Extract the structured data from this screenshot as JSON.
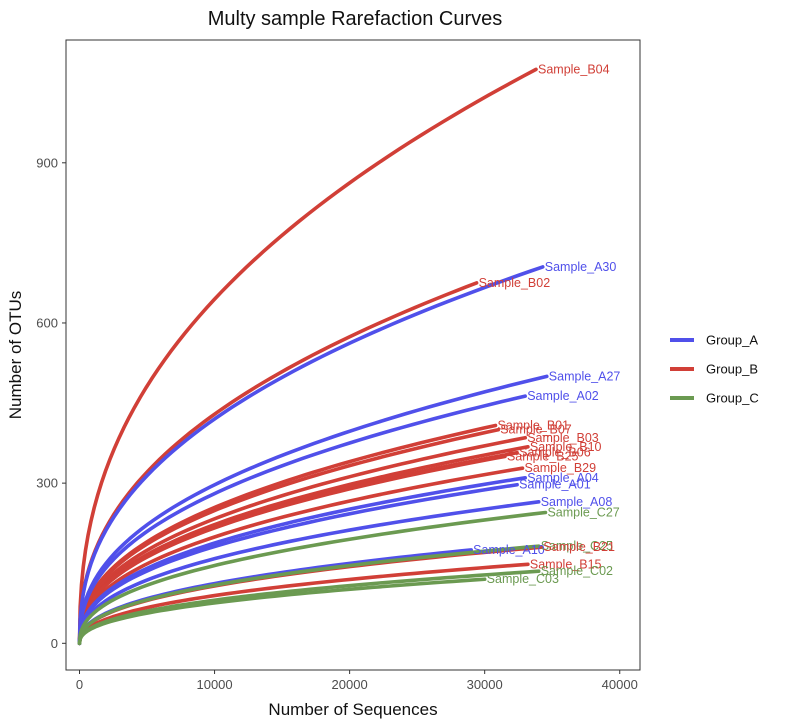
{
  "chart_data": {
    "type": "line",
    "title": "Multy sample Rarefaction Curves",
    "xlabel": "Number of Sequences",
    "ylabel": "Number of OTUs",
    "xlim": [
      -1000,
      41500
    ],
    "ylim": [
      -50,
      1130
    ],
    "xticks": [
      0,
      10000,
      20000,
      30000,
      40000
    ],
    "yticks": [
      0,
      300,
      600,
      900
    ],
    "grid": false,
    "legend_position": "right",
    "groups": [
      {
        "name": "Group_A",
        "color": "#5050ea"
      },
      {
        "name": "Group_B",
        "color": "#d13f37"
      },
      {
        "name": "Group_C",
        "color": "#6b9a51"
      }
    ],
    "series": [
      {
        "name": "Sample_B04",
        "group": "Group_B",
        "max_x": 33800,
        "max_y": 1075
      },
      {
        "name": "Sample_A30",
        "group": "Group_A",
        "max_x": 34300,
        "max_y": 705
      },
      {
        "name": "Sample_B02",
        "group": "Group_B",
        "max_x": 29400,
        "max_y": 675
      },
      {
        "name": "Sample_A27",
        "group": "Group_A",
        "max_x": 34600,
        "max_y": 500
      },
      {
        "name": "Sample_A02",
        "group": "Group_A",
        "max_x": 33000,
        "max_y": 463
      },
      {
        "name": "Sample_B01",
        "group": "Group_B",
        "max_x": 30800,
        "max_y": 408
      },
      {
        "name": "Sample_B07",
        "group": "Group_B",
        "max_x": 31000,
        "max_y": 400
      },
      {
        "name": "Sample_B03",
        "group": "Group_B",
        "max_x": 33000,
        "max_y": 385
      },
      {
        "name": "Sample_B10",
        "group": "Group_B",
        "max_x": 33200,
        "max_y": 368
      },
      {
        "name": "Sample_B06",
        "group": "Group_B",
        "max_x": 32400,
        "max_y": 357
      },
      {
        "name": "Sample_B25",
        "group": "Group_B",
        "max_x": 31500,
        "max_y": 350
      },
      {
        "name": "Sample_B29",
        "group": "Group_B",
        "max_x": 32800,
        "max_y": 328
      },
      {
        "name": "Sample_A04",
        "group": "Group_A",
        "max_x": 33000,
        "max_y": 310
      },
      {
        "name": "Sample_A01",
        "group": "Group_A",
        "max_x": 32400,
        "max_y": 297
      },
      {
        "name": "Sample_A08",
        "group": "Group_A",
        "max_x": 34000,
        "max_y": 265
      },
      {
        "name": "Sample_A10",
        "group": "Group_A",
        "max_x": 29000,
        "max_y": 175
      },
      {
        "name": "Sample_C27",
        "group": "Group_C",
        "max_x": 34500,
        "max_y": 245
      },
      {
        "name": "Sample_C25",
        "group": "Group_C",
        "max_x": 34000,
        "max_y": 182
      },
      {
        "name": "Sample_B21",
        "group": "Group_B",
        "max_x": 34200,
        "max_y": 180
      },
      {
        "name": "Sample_B15",
        "group": "Group_B",
        "max_x": 33200,
        "max_y": 148
      },
      {
        "name": "Sample_C02",
        "group": "Group_C",
        "max_x": 34000,
        "max_y": 135
      },
      {
        "name": "Sample_C03",
        "group": "Group_C",
        "max_x": 30000,
        "max_y": 120
      }
    ]
  }
}
